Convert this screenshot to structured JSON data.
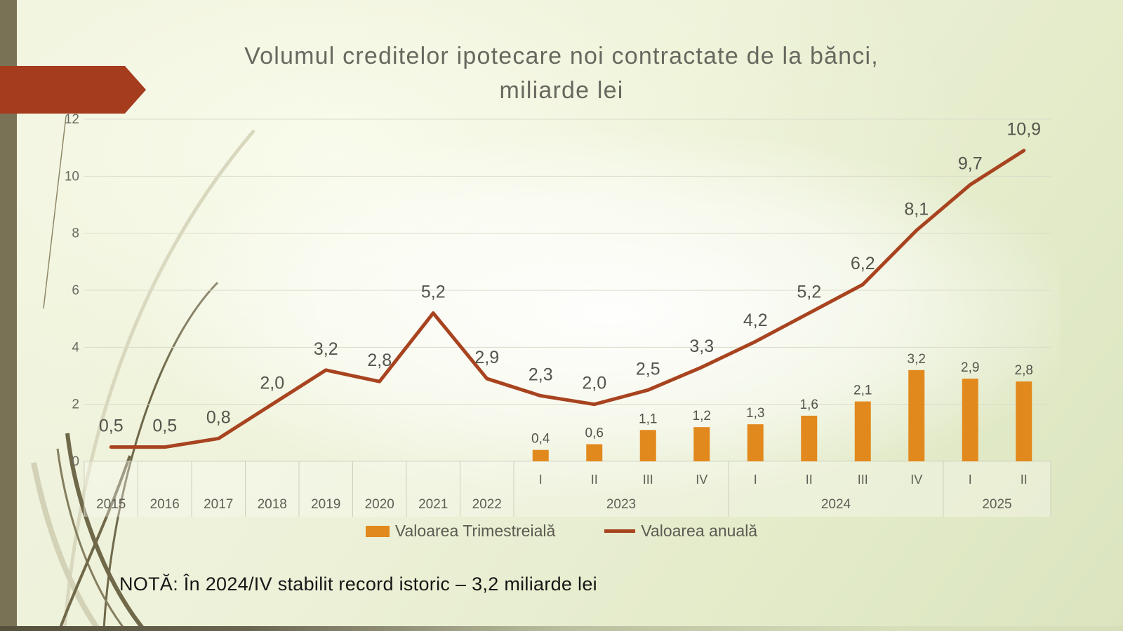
{
  "slide": {
    "title_line1": "Volumul creditelor ipotecare noi contractate de la bănci,",
    "title_line2": "miliarde lei",
    "note": "NOTĂ: În 2024/IV stabilit record istoric – 3,2 miliarde lei"
  },
  "legend": {
    "bar_label": "Valoarea Trimestreială",
    "line_label": "Valoarea anuală"
  },
  "colors": {
    "bar": "#E2891D",
    "line": "#A8431F",
    "arrow": "#A53C1E",
    "sidebar": "#7A7254",
    "grid": "#D9DCC9",
    "axis_text": "#5E5E56",
    "label_text": "#54544C"
  },
  "chart_data": {
    "type": "combo",
    "title": "Volumul creditelor ipotecare noi contractate de la bănci, miliarde lei",
    "xlabel": "",
    "ylabel": "",
    "ylim": [
      0,
      12
    ],
    "yticks": [
      0,
      2,
      4,
      6,
      8,
      10,
      12
    ],
    "grid": true,
    "legend_position": "bottom",
    "x_slots": [
      {
        "quarter": "",
        "group": "2015"
      },
      {
        "quarter": "",
        "group": "2016"
      },
      {
        "quarter": "",
        "group": "2017"
      },
      {
        "quarter": "",
        "group": "2018"
      },
      {
        "quarter": "",
        "group": "2019"
      },
      {
        "quarter": "",
        "group": "2020"
      },
      {
        "quarter": "",
        "group": "2021"
      },
      {
        "quarter": "",
        "group": "2022"
      },
      {
        "quarter": "I",
        "group": "2023"
      },
      {
        "quarter": "II",
        "group": "2023"
      },
      {
        "quarter": "III",
        "group": "2023"
      },
      {
        "quarter": "IV",
        "group": "2023"
      },
      {
        "quarter": "I",
        "group": "2024"
      },
      {
        "quarter": "II",
        "group": "2024"
      },
      {
        "quarter": "III",
        "group": "2024"
      },
      {
        "quarter": "IV",
        "group": "2024"
      },
      {
        "quarter": "I",
        "group": "2025"
      },
      {
        "quarter": "II",
        "group": "2025"
      }
    ],
    "series": [
      {
        "name": "Valoarea Trimestreială",
        "type": "bar",
        "color": "#E2891D",
        "values": [
          null,
          null,
          null,
          null,
          null,
          null,
          null,
          null,
          0.4,
          0.6,
          1.1,
          1.2,
          1.3,
          1.6,
          2.1,
          3.2,
          2.9,
          2.8
        ],
        "labels": [
          "",
          "",
          "",
          "",
          "",
          "",
          "",
          "",
          "0,4",
          "0,6",
          "1,1",
          "1,2",
          "1,3",
          "1,6",
          "2,1",
          "3,2",
          "2,9",
          "2,8"
        ]
      },
      {
        "name": "Valoarea anuală",
        "type": "line",
        "color": "#A8431F",
        "values": [
          0.5,
          0.5,
          0.8,
          2.0,
          3.2,
          2.8,
          5.2,
          2.9,
          2.3,
          2.0,
          2.5,
          3.3,
          4.2,
          5.2,
          6.2,
          8.1,
          9.7,
          10.9
        ],
        "labels": [
          "0,5",
          "0,5",
          "0,8",
          "2,0",
          "3,2",
          "2,8",
          "5,2",
          "2,9",
          "2,3",
          "2,0",
          "2,5",
          "3,3",
          "4,2",
          "5,2",
          "6,2",
          "8,1",
          "9,7",
          "10,9"
        ]
      }
    ]
  }
}
